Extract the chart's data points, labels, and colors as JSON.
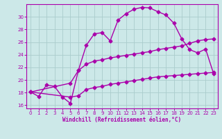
{
  "xlabel": "Windchill (Refroidissement éolien,°C)",
  "xlim": [
    -0.5,
    23.5
  ],
  "ylim": [
    15.5,
    32.0
  ],
  "yticks": [
    16,
    18,
    20,
    22,
    24,
    26,
    28,
    30
  ],
  "xticks": [
    0,
    1,
    2,
    3,
    4,
    5,
    6,
    7,
    8,
    9,
    10,
    11,
    12,
    13,
    14,
    15,
    16,
    17,
    18,
    19,
    20,
    21,
    22,
    23
  ],
  "bg_color": "#cce8e8",
  "grid_color": "#aacccc",
  "line_color": "#aa00aa",
  "curve1_x": [
    0,
    1,
    2,
    3,
    4,
    5,
    6,
    7,
    8,
    9,
    10,
    11,
    12,
    13,
    14,
    15,
    16,
    17,
    18,
    19,
    20,
    21,
    22,
    23
  ],
  "curve1_y": [
    18.1,
    17.4,
    19.2,
    19.0,
    17.3,
    16.3,
    21.5,
    25.5,
    27.3,
    27.5,
    26.2,
    29.5,
    30.5,
    31.2,
    31.5,
    31.4,
    30.8,
    30.3,
    29.0,
    26.5,
    24.8,
    24.3,
    24.9,
    21.0
  ],
  "curve2_x": [
    0,
    5,
    6,
    7,
    8,
    9,
    10,
    11,
    12,
    13,
    14,
    15,
    16,
    17,
    18,
    19,
    20,
    21,
    22,
    23
  ],
  "curve2_y": [
    18.1,
    19.5,
    21.5,
    22.5,
    23.0,
    23.2,
    23.5,
    23.7,
    23.9,
    24.1,
    24.3,
    24.5,
    24.8,
    25.0,
    25.2,
    25.4,
    25.8,
    26.2,
    26.4,
    26.5
  ],
  "curve3_x": [
    0,
    5,
    6,
    7,
    8,
    9,
    10,
    11,
    12,
    13,
    14,
    15,
    16,
    17,
    18,
    19,
    20,
    21,
    22,
    23
  ],
  "curve3_y": [
    18.1,
    17.3,
    17.5,
    18.5,
    18.8,
    19.0,
    19.3,
    19.5,
    19.7,
    19.9,
    20.1,
    20.3,
    20.5,
    20.6,
    20.7,
    20.8,
    20.9,
    21.0,
    21.1,
    21.2
  ],
  "marker": "D",
  "marker_size": 2.5,
  "linewidth": 1.0
}
